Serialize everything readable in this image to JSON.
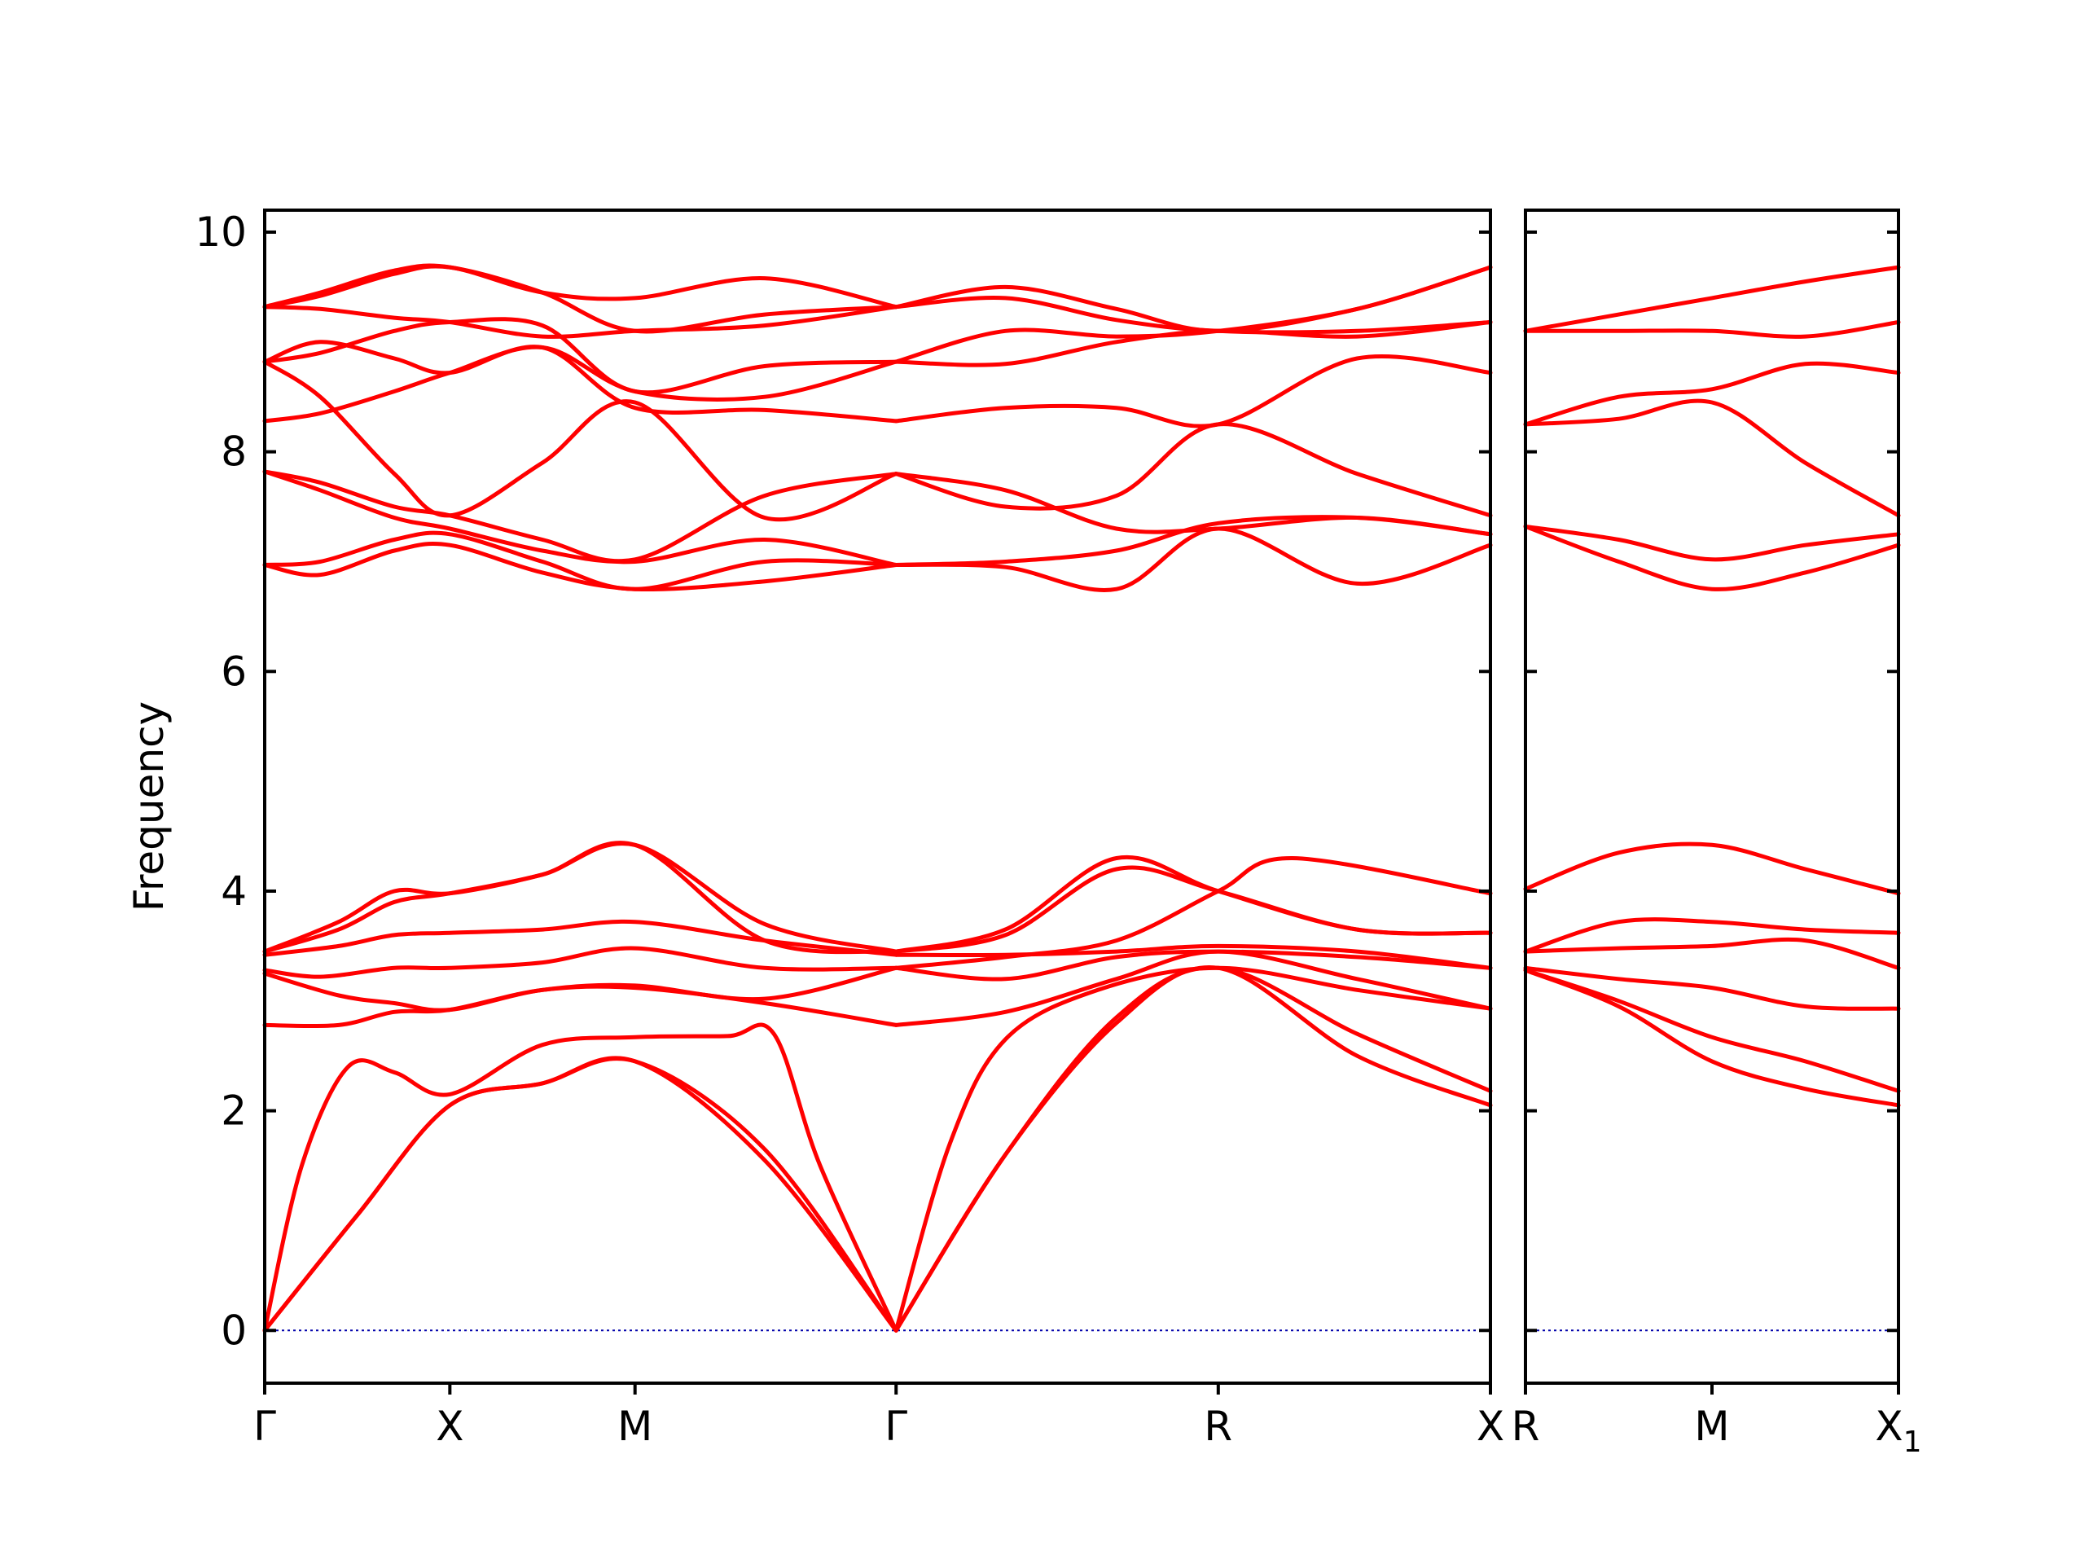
{
  "chart_data": {
    "type": "line",
    "ylabel": "Frequency",
    "ylim": [
      -0.48,
      10.2
    ],
    "y_ticks": [
      0,
      2,
      4,
      6,
      8,
      10
    ],
    "y_tick_labels": [
      "0",
      "2",
      "4",
      "6",
      "8",
      "10"
    ],
    "colors": {
      "band": "#ff0000",
      "zero_line": "#0000aa",
      "frame": "#000000"
    },
    "panels": [
      {
        "x_range": [
          0,
          6.62
        ],
        "x_ticks": [
          {
            "x": 0,
            "label": "Γ"
          },
          {
            "x": 1.0,
            "label": "X"
          },
          {
            "x": 2.0,
            "label": "M"
          },
          {
            "x": 3.41,
            "label": "Γ"
          },
          {
            "x": 5.15,
            "label": "R"
          },
          {
            "x": 6.62,
            "label": "X"
          }
        ],
        "bands": [
          {
            "x": [
              0,
              0.5,
              1.0,
              1.5,
              2.0,
              2.7,
              3.41
            ],
            "y": [
              0,
              1.05,
              2.05,
              2.25,
              2.45,
              1.55,
              0
            ]
          },
          {
            "x": [
              0,
              0.5,
              1.0,
              1.5,
              2.0,
              2.7,
              3.41
            ],
            "y": [
              0,
              1.05,
              2.05,
              2.25,
              2.45,
              1.65,
              0
            ]
          },
          {
            "x": [
              0,
              0.2,
              0.45,
              0.7,
              1.0,
              1.5,
              2.0,
              2.5,
              2.75,
              3.0,
              3.41
            ],
            "y": [
              0,
              1.5,
              2.4,
              2.35,
              2.15,
              2.6,
              2.67,
              2.68,
              2.7,
              1.5,
              0
            ]
          },
          {
            "x": [
              3.41,
              4.0,
              4.6,
              5.15,
              5.9,
              6.62
            ],
            "y": [
              0,
              1.6,
              2.8,
              3.3,
              2.5,
              2.05
            ]
          },
          {
            "x": [
              3.41,
              4.0,
              4.6,
              5.15,
              5.9,
              6.62
            ],
            "y": [
              0,
              1.6,
              2.85,
              3.3,
              2.7,
              2.18
            ]
          },
          {
            "x": [
              3.41,
              3.7,
              4.0,
              4.5,
              5.15,
              5.9,
              6.62
            ],
            "y": [
              0,
              1.7,
              2.65,
              3.1,
              3.3,
              3.1,
              2.93
            ]
          },
          {
            "x": [
              0,
              0.4,
              0.7,
              1.0,
              1.5,
              2.0,
              2.7,
              3.41
            ],
            "y": [
              2.78,
              2.78,
              2.9,
              2.92,
              3.1,
              3.12,
              2.98,
              2.78
            ]
          },
          {
            "x": [
              0,
              0.4,
              0.7,
              1.0,
              1.5,
              2.0,
              2.7,
              3.41
            ],
            "y": [
              3.25,
              3.05,
              2.98,
              2.92,
              3.1,
              3.14,
              3.02,
              3.3
            ]
          },
          {
            "x": [
              0,
              0.3,
              0.7,
              1.0,
              1.5,
              2.0,
              2.7,
              3.41
            ],
            "y": [
              3.28,
              3.22,
              3.3,
              3.3,
              3.35,
              3.48,
              3.3,
              3.3
            ]
          },
          {
            "x": [
              0,
              0.4,
              0.7,
              1.0,
              1.5,
              2.0,
              2.7,
              3.41
            ],
            "y": [
              3.42,
              3.5,
              3.6,
              3.62,
              3.65,
              3.72,
              3.55,
              3.42
            ]
          },
          {
            "x": [
              0,
              0.4,
              0.7,
              1.0,
              1.5,
              2.0,
              2.7,
              3.41
            ],
            "y": [
              3.45,
              3.72,
              4.0,
              3.98,
              4.15,
              4.42,
              3.7,
              3.45
            ]
          },
          {
            "x": [
              0,
              0.4,
              0.7,
              1.0,
              1.5,
              2.0,
              2.7,
              3.41
            ],
            "y": [
              3.45,
              3.65,
              3.9,
              3.98,
              4.15,
              4.42,
              3.55,
              3.45
            ]
          },
          {
            "x": [
              3.41,
              4.0,
              4.6,
              5.15,
              5.9,
              6.62
            ],
            "y": [
              2.78,
              2.9,
              3.2,
              3.45,
              3.2,
              2.93
            ]
          },
          {
            "x": [
              3.41,
              4.0,
              4.6,
              5.15,
              5.9,
              6.62
            ],
            "y": [
              3.3,
              3.2,
              3.4,
              3.45,
              3.4,
              3.3
            ]
          },
          {
            "x": [
              3.41,
              4.0,
              4.6,
              5.15,
              5.9,
              6.62
            ],
            "y": [
              3.42,
              3.42,
              3.45,
              3.5,
              3.45,
              3.3
            ]
          },
          {
            "x": [
              3.41,
              4.0,
              4.6,
              5.15,
              5.9,
              6.62
            ],
            "y": [
              3.45,
              3.65,
              4.3,
              4.0,
              3.65,
              3.62
            ]
          },
          {
            "x": [
              3.41,
              4.0,
              4.6,
              5.15,
              5.9,
              6.62
            ],
            "y": [
              3.45,
              3.6,
              4.2,
              4.0,
              3.65,
              3.62
            ]
          },
          {
            "x": [
              3.41,
              4.0,
              4.6,
              5.15,
              5.55,
              6.62
            ],
            "y": [
              3.3,
              3.4,
              3.55,
              4.0,
              4.3,
              3.98
            ]
          },
          {
            "x": [
              0,
              0.3,
              0.7,
              1.0,
              1.5,
              2.0,
              2.7,
              3.41
            ],
            "y": [
              6.97,
              6.88,
              7.1,
              7.15,
              6.9,
              6.75,
              6.82,
              6.97
            ]
          },
          {
            "x": [
              0,
              0.3,
              0.7,
              1.0,
              1.5,
              2.0,
              2.7,
              3.41
            ],
            "y": [
              6.97,
              7.0,
              7.2,
              7.25,
              7.0,
              6.75,
              7.0,
              6.97
            ]
          },
          {
            "x": [
              0,
              0.3,
              0.7,
              1.0,
              1.5,
              2.0,
              2.7,
              3.41
            ],
            "y": [
              7.82,
              7.65,
              7.4,
              7.3,
              7.1,
              7.0,
              7.2,
              6.97
            ]
          },
          {
            "x": [
              0,
              0.3,
              0.7,
              1.0,
              1.5,
              2.0,
              2.7,
              3.41
            ],
            "y": [
              7.82,
              7.72,
              7.5,
              7.42,
              7.2,
              7.02,
              7.6,
              7.8
            ]
          },
          {
            "x": [
              0,
              0.3,
              0.7,
              1.0,
              1.5,
              2.0,
              2.7,
              3.41
            ],
            "y": [
              8.82,
              8.5,
              7.8,
              7.42,
              7.9,
              8.45,
              7.4,
              7.8
            ]
          },
          {
            "x": [
              3.41,
              4.0,
              4.6,
              5.15,
              5.9,
              6.62
            ],
            "y": [
              6.97,
              6.95,
              6.75,
              7.3,
              6.8,
              7.15
            ]
          },
          {
            "x": [
              3.41,
              4.0,
              4.6,
              5.15,
              5.9,
              6.62
            ],
            "y": [
              6.97,
              7.0,
              7.1,
              7.35,
              7.4,
              7.25
            ]
          },
          {
            "x": [
              3.41,
              4.0,
              4.6,
              5.15,
              5.9,
              6.62
            ],
            "y": [
              7.8,
              7.65,
              7.3,
              7.3,
              7.4,
              7.25
            ]
          },
          {
            "x": [
              3.41,
              4.0,
              4.6,
              5.15,
              5.9,
              6.62
            ],
            "y": [
              7.8,
              7.5,
              7.6,
              8.25,
              7.8,
              7.42
            ]
          },
          {
            "x": [
              0,
              0.3,
              0.7,
              1.0,
              1.5,
              2.0,
              2.7,
              3.41
            ],
            "y": [
              8.28,
              8.35,
              8.55,
              8.72,
              8.95,
              8.55,
              8.5,
              8.82
            ]
          },
          {
            "x": [
              0,
              0.3,
              0.7,
              1.0,
              1.5,
              2.0,
              2.7,
              3.41
            ],
            "y": [
              8.82,
              9.0,
              8.85,
              8.72,
              8.95,
              8.4,
              8.38,
              8.28
            ]
          },
          {
            "x": [
              0,
              0.3,
              0.7,
              1.0,
              1.5,
              2.0,
              2.7,
              3.41
            ],
            "y": [
              8.82,
              8.9,
              9.1,
              9.18,
              9.15,
              8.55,
              8.78,
              8.82
            ]
          },
          {
            "x": [
              0,
              0.3,
              0.7,
              1.0,
              1.5,
              2.0,
              2.7,
              3.41
            ],
            "y": [
              9.32,
              9.3,
              9.22,
              9.18,
              9.05,
              9.1,
              9.15,
              9.32
            ]
          },
          {
            "x": [
              0,
              0.3,
              0.7,
              1.0,
              1.5,
              2.0,
              2.7,
              3.41
            ],
            "y": [
              9.32,
              9.45,
              9.65,
              9.68,
              9.45,
              9.1,
              9.25,
              9.32
            ]
          },
          {
            "x": [
              0,
              0.3,
              0.7,
              1.0,
              1.5,
              2.0,
              2.7,
              3.41
            ],
            "y": [
              9.32,
              9.42,
              9.62,
              9.68,
              9.45,
              9.4,
              9.58,
              9.32
            ]
          },
          {
            "x": [
              3.41,
              4.0,
              4.6,
              5.15,
              5.9,
              6.62
            ],
            "y": [
              8.28,
              8.4,
              8.4,
              8.25,
              8.85,
              8.72
            ]
          },
          {
            "x": [
              3.41,
              4.0,
              4.6,
              5.15,
              5.9,
              6.62
            ],
            "y": [
              8.82,
              8.8,
              9.0,
              9.1,
              9.05,
              9.18
            ]
          },
          {
            "x": [
              3.41,
              4.0,
              4.6,
              5.15,
              5.9,
              6.62
            ],
            "y": [
              8.82,
              9.1,
              9.05,
              9.1,
              9.3,
              9.68
            ]
          },
          {
            "x": [
              3.41,
              4.0,
              4.6,
              5.15,
              5.9,
              6.62
            ],
            "y": [
              9.32,
              9.5,
              9.3,
              9.1,
              9.3,
              9.68
            ]
          },
          {
            "x": [
              3.41,
              4.0,
              4.6,
              5.15,
              5.9,
              6.62
            ],
            "y": [
              9.32,
              9.4,
              9.2,
              9.1,
              9.1,
              9.18
            ]
          }
        ]
      },
      {
        "x_range": [
          0,
          1.0
        ],
        "x_ticks": [
          {
            "x": 0,
            "label": "R"
          },
          {
            "x": 0.5,
            "label": "M"
          },
          {
            "x": 1.0,
            "label": "X",
            "subscript": "1"
          }
        ],
        "bands": [
          {
            "x": [
              0,
              0.25,
              0.5,
              0.75,
              1.0
            ],
            "y": [
              3.28,
              2.95,
              2.45,
              2.2,
              2.05
            ]
          },
          {
            "x": [
              0,
              0.25,
              0.5,
              0.75,
              1.0
            ],
            "y": [
              3.28,
              3.0,
              2.67,
              2.45,
              2.18
            ]
          },
          {
            "x": [
              0,
              0.25,
              0.5,
              0.75,
              1.0
            ],
            "y": [
              3.3,
              3.2,
              3.12,
              2.95,
              2.93
            ]
          },
          {
            "x": [
              0,
              0.25,
              0.5,
              0.75,
              1.0
            ],
            "y": [
              3.45,
              3.48,
              3.5,
              3.55,
              3.3
            ]
          },
          {
            "x": [
              0,
              0.25,
              0.5,
              0.75,
              1.0
            ],
            "y": [
              3.45,
              3.72,
              3.72,
              3.65,
              3.62
            ]
          },
          {
            "x": [
              0,
              0.25,
              0.5,
              0.75,
              1.0
            ],
            "y": [
              4.02,
              4.35,
              4.42,
              4.2,
              3.98
            ]
          },
          {
            "x": [
              0,
              0.25,
              0.5,
              0.75,
              1.0
            ],
            "y": [
              7.32,
              7.0,
              6.75,
              6.9,
              7.15
            ]
          },
          {
            "x": [
              0,
              0.25,
              0.5,
              0.75,
              1.0
            ],
            "y": [
              7.32,
              7.2,
              7.02,
              7.15,
              7.25
            ]
          },
          {
            "x": [
              0,
              0.25,
              0.5,
              0.75,
              1.0
            ],
            "y": [
              8.25,
              8.3,
              8.45,
              7.9,
              7.42
            ]
          },
          {
            "x": [
              0,
              0.25,
              0.5,
              0.75,
              1.0
            ],
            "y": [
              8.25,
              8.5,
              8.57,
              8.8,
              8.72
            ]
          },
          {
            "x": [
              0,
              0.25,
              0.5,
              0.75,
              1.0
            ],
            "y": [
              9.1,
              9.1,
              9.1,
              9.05,
              9.18
            ]
          },
          {
            "x": [
              0,
              0.25,
              0.5,
              0.75,
              1.0
            ],
            "y": [
              9.1,
              9.25,
              9.4,
              9.55,
              9.68
            ]
          }
        ]
      }
    ]
  }
}
